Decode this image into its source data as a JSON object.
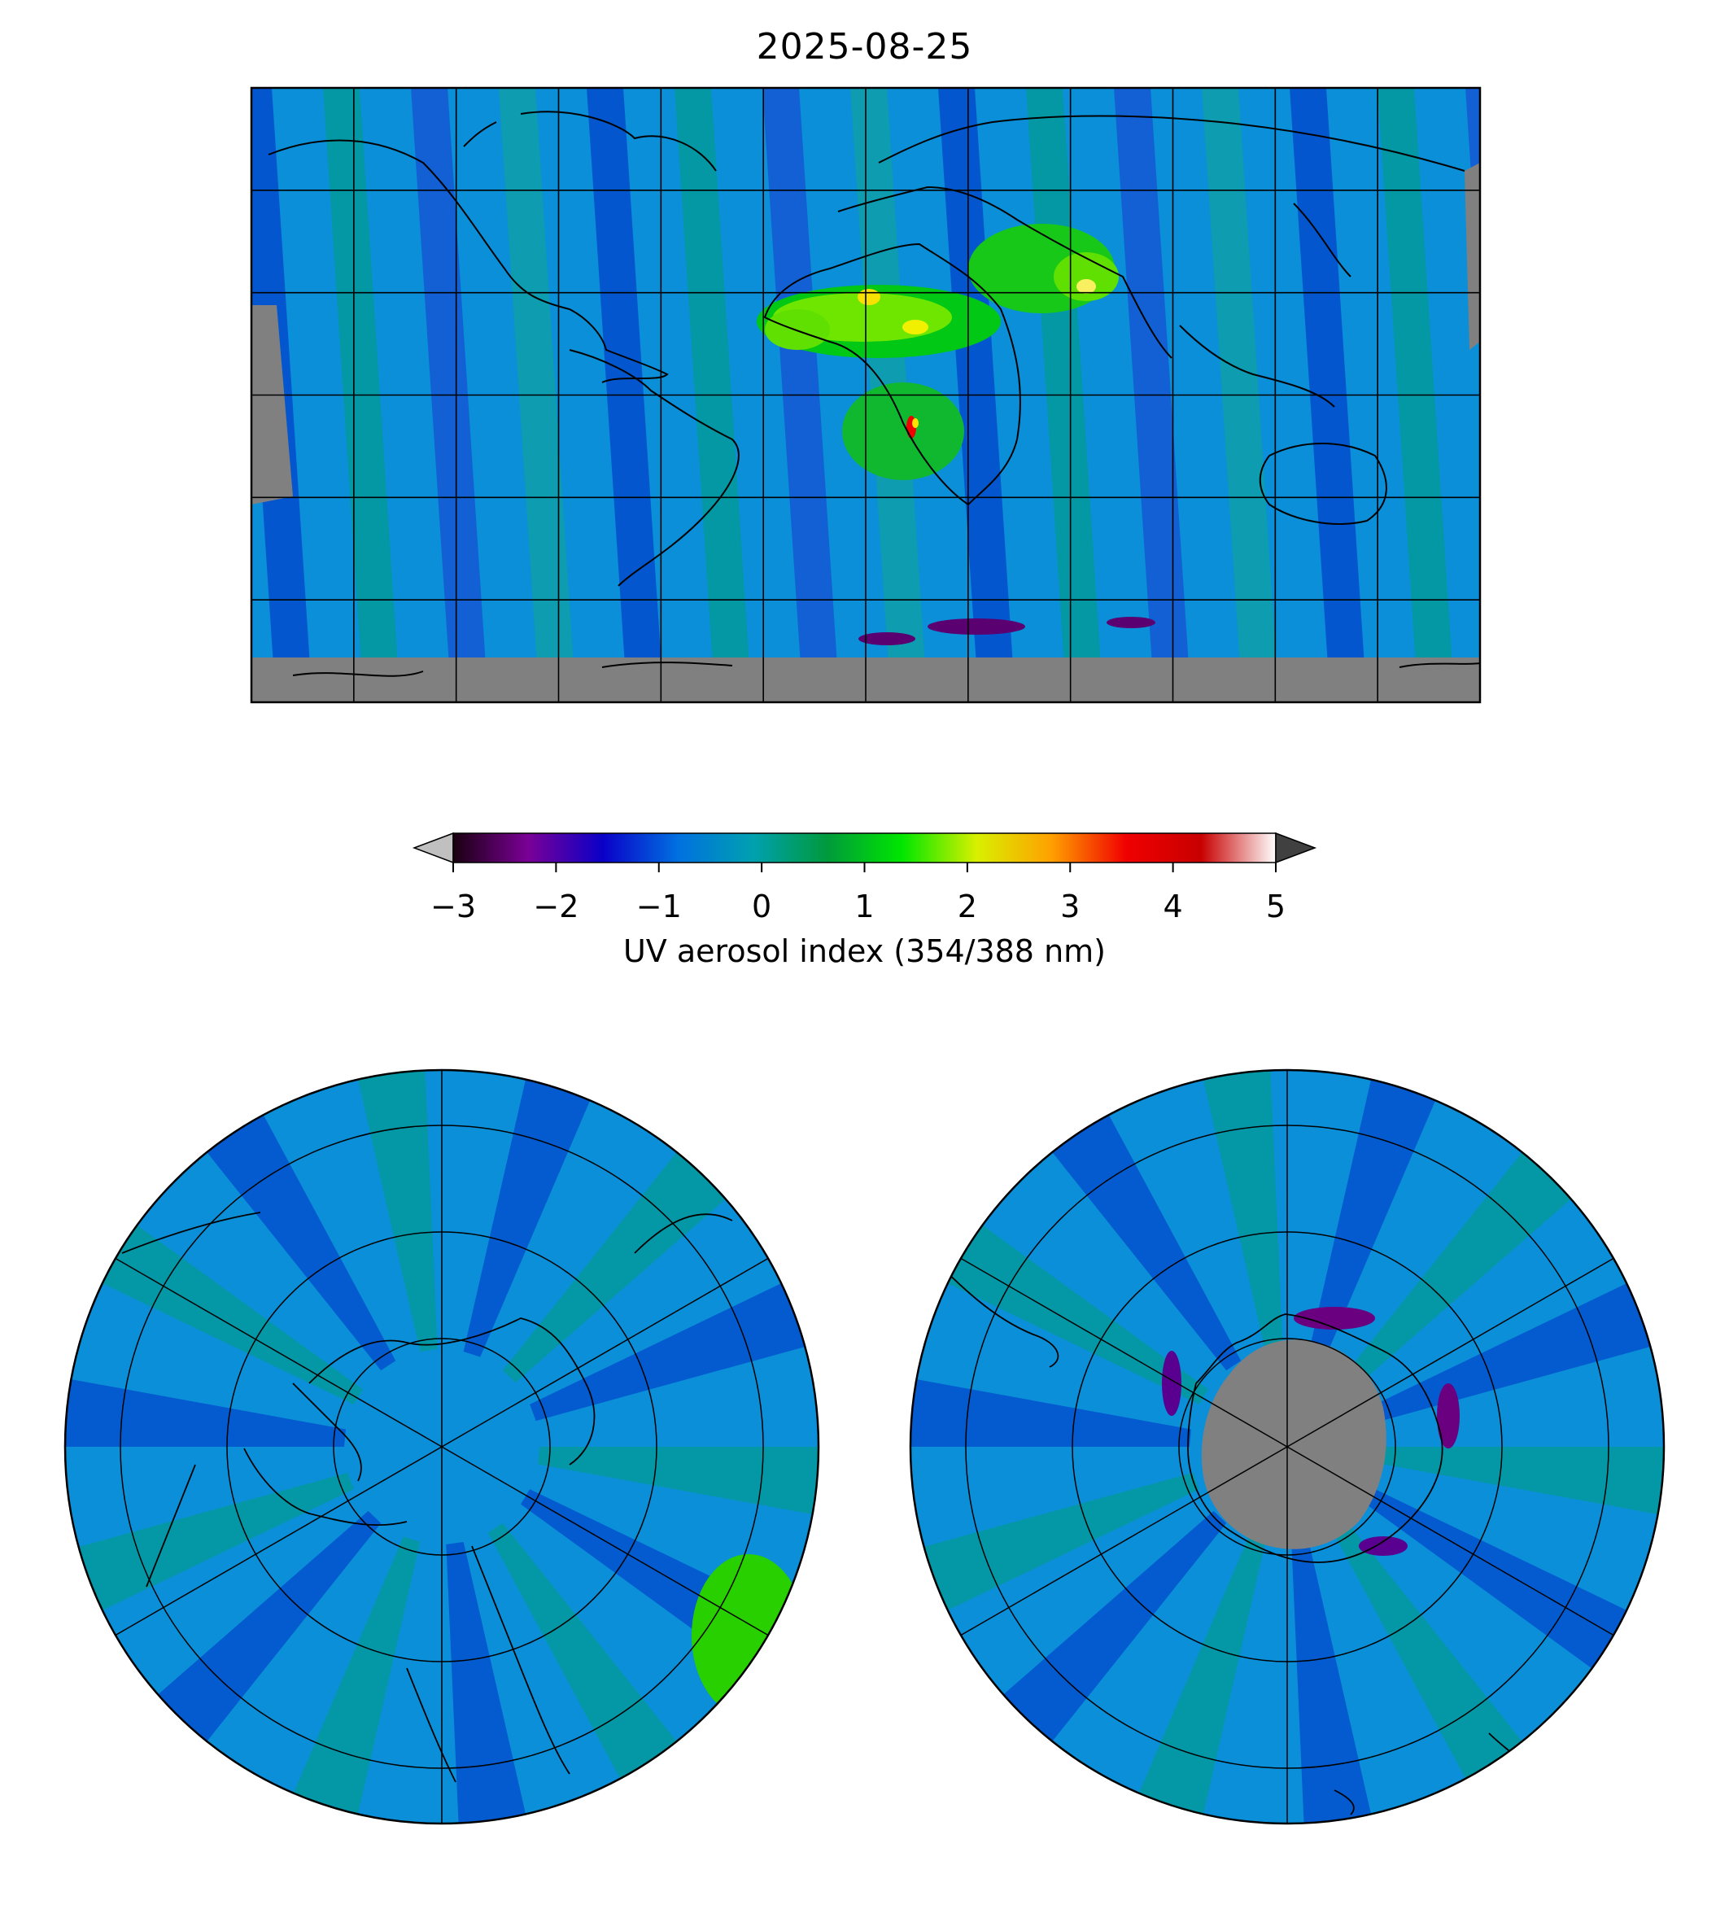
{
  "title": "2025-08-25",
  "colorbar": {
    "label": "UV aerosol index (354/388 nm)",
    "min": -3,
    "max": 5,
    "ticks": [
      "−3",
      "−2",
      "−1",
      "0",
      "1",
      "2",
      "3",
      "4",
      "5"
    ],
    "extend": "both",
    "colormap_stops": [
      "#1a0010",
      "#7a0096",
      "#0a00c8",
      "#0070e0",
      "#00a0b0",
      "#009a3c",
      "#00e600",
      "#d8f000",
      "#ffa000",
      "#f00000",
      "#c80000",
      "#ffffff"
    ],
    "under_color": "#c0c0c0",
    "over_color": "#404040",
    "no_data_color": "#808080"
  },
  "maps": {
    "global": {
      "projection": "plate-carree",
      "gridlines": true,
      "coastlines": true
    },
    "north_polar": {
      "projection": "north-polar-stereographic",
      "gridlines": true,
      "coastlines": true
    },
    "south_polar": {
      "projection": "south-polar-stereographic",
      "gridlines": true,
      "coastlines": true
    }
  }
}
